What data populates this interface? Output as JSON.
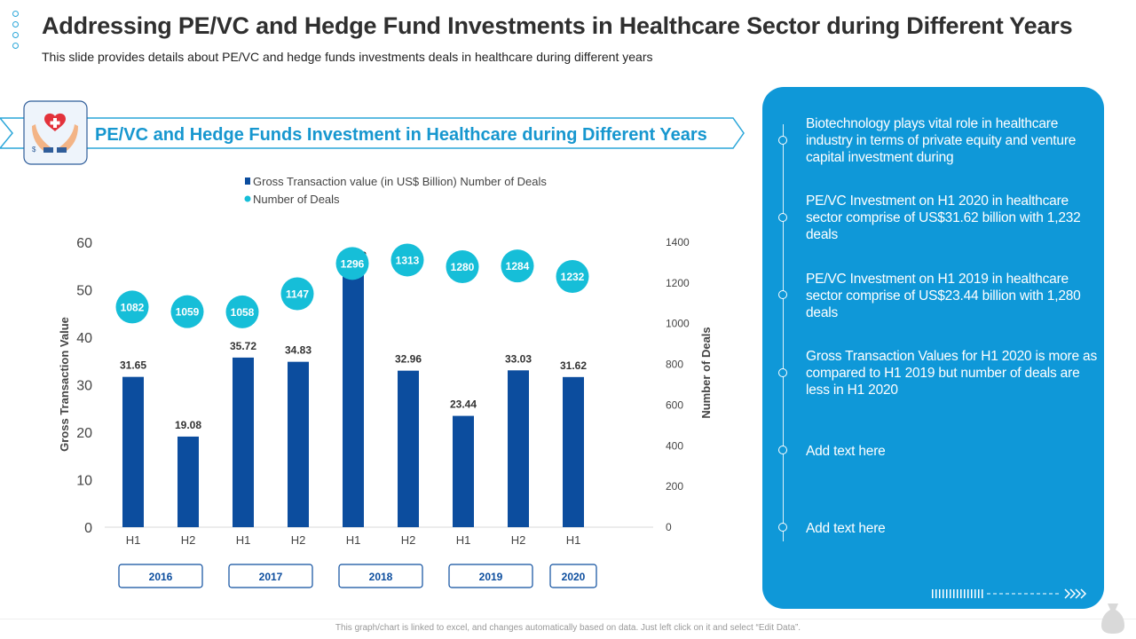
{
  "header": {
    "title": "Addressing PE/VC and Hedge Fund Investments in Healthcare Sector during Different Years",
    "subtitle": "This slide provides details about PE/VC  and hedge funds investments deals in healthcare during different years"
  },
  "banner": {
    "title": "PE/VC and Hedge Funds Investment in Healthcare during Different Years",
    "icon": "healthcare-hands-heart-icon"
  },
  "chart_data": {
    "type": "bar",
    "legend": [
      "Gross Transaction value (in US$ Billion) Number of Deals",
      "Number of Deals"
    ],
    "categories": [
      "H1",
      "H2",
      "H1",
      "H2",
      "H1",
      "H2",
      "H1",
      "H2",
      "H1"
    ],
    "years": [
      {
        "label": "2016",
        "from": 0,
        "to": 1
      },
      {
        "label": "2017",
        "from": 2,
        "to": 3
      },
      {
        "label": "2018",
        "from": 4,
        "to": 5
      },
      {
        "label": "2019",
        "from": 6,
        "to": 7
      },
      {
        "label": "2020",
        "from": 8,
        "to": 8
      }
    ],
    "series": [
      {
        "name": "Gross Transaction value (in US$ Billion)",
        "kind": "bar",
        "axis": "left",
        "values": [
          31.65,
          19.08,
          35.72,
          34.83,
          54.78,
          32.96,
          23.44,
          33.03,
          31.62
        ]
      },
      {
        "name": "Number of Deals",
        "kind": "bubble",
        "axis": "right",
        "values": [
          1082,
          1059,
          1058,
          1147,
          1296,
          1313,
          1280,
          1284,
          1232
        ]
      }
    ],
    "ylabel": "Gross Transaction Value",
    "y2label": "Number of Deals",
    "ylim": [
      0,
      60
    ],
    "yticks": [
      0,
      10,
      20,
      30,
      40,
      50,
      60
    ],
    "y2lim": [
      0,
      1400
    ],
    "y2ticks": [
      0,
      200,
      400,
      600,
      800,
      1000,
      1200,
      1400
    ],
    "colors": {
      "bar": "#0c4d9e",
      "bubble": "#16bed8",
      "bubble_label": "#ffffff",
      "year_box": "#0c4d9e"
    }
  },
  "panel": {
    "items": [
      "Biotechnology plays vital role in healthcare industry in terms of private equity and venture capital investment  during",
      "PE/VC Investment  on H1 2020 in healthcare sector comprise of US$31.62 billion with 1,232 deals",
      "PE/VC Investment  on H1 2019 in healthcare sector comprise of US$23.44 billion with 1,280 deals",
      "Gross Transaction Values for H1 2020 is more as compared to H1 2019 but number of deals are less in H1 2020",
      "Add text here",
      "Add text here"
    ]
  },
  "footer": {
    "note": "This graph/chart is linked to excel, and changes automatically based on data. Just left click on it and select “Edit Data”."
  }
}
